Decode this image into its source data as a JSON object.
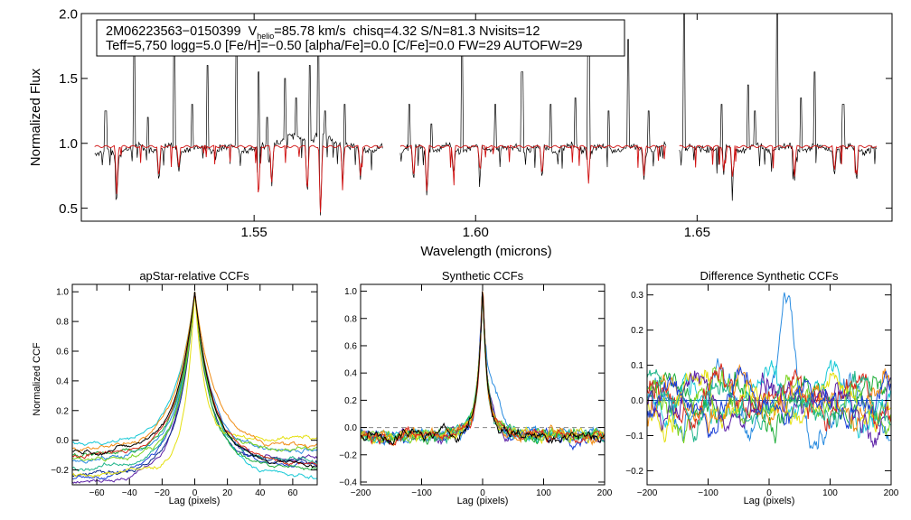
{
  "chart_data": [
    {
      "type": "line",
      "id": "spectrum",
      "xlabel": "Wavelength (microns)",
      "ylabel": "Normalized Flux",
      "xlim": [
        1.511,
        1.694
      ],
      "ylim": [
        0.4,
        2.0
      ],
      "xticks": [
        1.55,
        1.6,
        1.65
      ],
      "xtick_labels": [
        "1.55",
        "1.60",
        "1.65"
      ],
      "yticks": [
        0.5,
        1.0,
        1.5,
        2.0
      ],
      "ytick_labels": [
        "0.5",
        "1.0",
        "1.5",
        "2.0"
      ],
      "segments": [
        [
          1.514,
          1.579
        ],
        [
          1.583,
          1.643
        ],
        [
          1.646,
          1.6905
        ]
      ],
      "model_color": "#d01010",
      "observed_color": "#000000",
      "emission_spikes": [
        [
          1.5165,
          1.25
        ],
        [
          1.523,
          1.8
        ],
        [
          1.526,
          1.2
        ],
        [
          1.532,
          1.95
        ],
        [
          1.536,
          1.3
        ],
        [
          1.5395,
          1.6
        ],
        [
          1.546,
          1.85
        ],
        [
          1.551,
          1.55
        ],
        [
          1.553,
          1.2
        ],
        [
          1.557,
          1.5
        ],
        [
          1.5595,
          1.35
        ],
        [
          1.5625,
          1.6
        ],
        [
          1.5645,
          1.95
        ],
        [
          1.566,
          1.25
        ],
        [
          1.5705,
          1.3
        ],
        [
          1.585,
          1.3
        ],
        [
          1.59,
          1.15
        ],
        [
          1.597,
          1.8
        ],
        [
          1.6045,
          1.3
        ],
        [
          1.6105,
          1.55
        ],
        [
          1.617,
          1.3
        ],
        [
          1.6225,
          1.35
        ],
        [
          1.6255,
          1.8
        ],
        [
          1.63,
          1.25
        ],
        [
          1.6345,
          1.8
        ],
        [
          1.639,
          1.25
        ],
        [
          1.647,
          2.05
        ],
        [
          1.6555,
          1.3
        ],
        [
          1.6615,
          1.45
        ],
        [
          1.663,
          1.25
        ],
        [
          1.668,
          2.05
        ],
        [
          1.6735,
          1.35
        ],
        [
          1.6765,
          1.55
        ],
        [
          1.683,
          1.3
        ]
      ],
      "absorption_lines": [
        [
          1.519,
          0.61
        ],
        [
          1.5285,
          0.72
        ],
        [
          1.533,
          0.8
        ],
        [
          1.551,
          0.55
        ],
        [
          1.554,
          0.7
        ],
        [
          1.562,
          0.6
        ],
        [
          1.565,
          0.42
        ],
        [
          1.57,
          0.7
        ],
        [
          1.574,
          0.75
        ],
        [
          1.586,
          0.72
        ],
        [
          1.589,
          0.6
        ],
        [
          1.595,
          0.78
        ],
        [
          1.601,
          0.77
        ],
        [
          1.615,
          0.74
        ],
        [
          1.6255,
          0.69
        ],
        [
          1.638,
          0.75
        ],
        [
          1.656,
          0.78
        ],
        [
          1.658,
          0.71
        ],
        [
          1.672,
          0.74
        ],
        [
          1.681,
          0.77
        ],
        [
          1.686,
          0.72
        ]
      ]
    },
    {
      "type": "line",
      "id": "ccf-apstar",
      "title": "apStar-relative CCFs",
      "xlabel": "Lag (pixels)",
      "ylabel": "Normalized CCF",
      "xlim": [
        -75,
        75
      ],
      "ylim": [
        -0.3,
        1.05
      ],
      "xticks": [
        -60,
        -40,
        -20,
        0,
        20,
        40,
        60
      ],
      "xtick_labels": [
        "−60",
        "−40",
        "−20",
        "0",
        "20",
        "40",
        "60"
      ],
      "yticks": [
        -0.2,
        0.0,
        0.2,
        0.4,
        0.6,
        0.8,
        1.0
      ],
      "ytick_labels": [
        "−0.2",
        "0.0",
        "0.2",
        "0.4",
        "0.6",
        "0.8",
        "1.0"
      ],
      "peak_x": 0,
      "peak_y": 1.0,
      "series": [
        {
          "name": "purple",
          "color": "#5b1fa6",
          "edge_left": -0.22,
          "edge_right": -0.1,
          "width": 10
        },
        {
          "name": "blue",
          "color": "#1a3fd6",
          "edge_left": -0.2,
          "edge_right": -0.13,
          "width": 11
        },
        {
          "name": "navy",
          "color": "#0c2a8a",
          "edge_left": -0.18,
          "edge_right": -0.12,
          "width": 9
        },
        {
          "name": "sky",
          "color": "#2a8ce0",
          "edge_left": -0.1,
          "edge_right": -0.05,
          "width": 10
        },
        {
          "name": "cyan",
          "color": "#18c9d6",
          "edge_left": -0.02,
          "edge_right": -0.2,
          "width": 12
        },
        {
          "name": "teal",
          "color": "#20b58a",
          "edge_left": -0.15,
          "edge_right": -0.1,
          "width": 10
        },
        {
          "name": "green",
          "color": "#1fae3a",
          "edge_left": -0.08,
          "edge_right": -0.15,
          "width": 10
        },
        {
          "name": "lime",
          "color": "#7ad31d",
          "edge_left": -0.1,
          "edge_right": -0.05,
          "width": 9
        },
        {
          "name": "yellow",
          "color": "#e4e00e",
          "edge_left": -0.18,
          "edge_right": 0.01,
          "width": 6
        },
        {
          "name": "orange",
          "color": "#f08b12",
          "edge_left": -0.05,
          "edge_right": -0.03,
          "width": 12
        },
        {
          "name": "red",
          "color": "#d8281a",
          "edge_left": -0.08,
          "edge_right": -0.12,
          "width": 11
        },
        {
          "name": "black",
          "color": "#000000",
          "edge_left": -0.06,
          "edge_right": -0.13,
          "width": 11
        }
      ]
    },
    {
      "type": "line",
      "id": "ccf-synthetic",
      "title": "Synthetic CCFs",
      "xlabel": "Lag (pixels)",
      "ylabel": "",
      "xlim": [
        -200,
        200
      ],
      "ylim": [
        -0.42,
        1.05
      ],
      "xticks": [
        -200,
        -100,
        0,
        100,
        200
      ],
      "xtick_labels": [
        "−200",
        "−100",
        "0",
        "100",
        "200"
      ],
      "yticks": [
        -0.4,
        -0.2,
        0.0,
        0.2,
        0.4,
        0.6,
        0.8,
        1.0
      ],
      "ytick_labels": [
        "−0.4",
        "−0.2",
        "0.0",
        "0.2",
        "0.4",
        "0.6",
        "0.8",
        "1.0"
      ],
      "zero_line": 0.0,
      "series": [
        {
          "name": "purple",
          "color": "#5b1fa6"
        },
        {
          "name": "blue",
          "color": "#1a3fd6"
        },
        {
          "name": "sky",
          "color": "#2a8ce0"
        },
        {
          "name": "cyan",
          "color": "#18c9d6"
        },
        {
          "name": "teal",
          "color": "#20b58a"
        },
        {
          "name": "green",
          "color": "#1fae3a"
        },
        {
          "name": "lime",
          "color": "#7ad31d"
        },
        {
          "name": "yellow",
          "color": "#e4e00e"
        },
        {
          "name": "orange",
          "color": "#f08b12"
        },
        {
          "name": "red",
          "color": "#d8281a"
        },
        {
          "name": "black",
          "color": "#000000"
        }
      ]
    },
    {
      "type": "line",
      "id": "ccf-difference",
      "title": "Difference Synthetic CCFs",
      "xlabel": "Lag (pixels)",
      "ylabel": "",
      "xlim": [
        -200,
        200
      ],
      "ylim": [
        -0.24,
        0.33
      ],
      "xticks": [
        -200,
        -100,
        0,
        100,
        200
      ],
      "xtick_labels": [
        "−200",
        "−100",
        "0",
        "100",
        "200"
      ],
      "yticks": [
        -0.2,
        -0.1,
        0.0,
        0.1,
        0.2,
        0.3
      ],
      "ytick_labels": [
        "−0.2",
        "−0.1",
        "0.0",
        "0.1",
        "0.2",
        "0.3"
      ],
      "zero_line": 0.0,
      "series": [
        {
          "name": "sky",
          "color": "#2a8ce0",
          "peak_x": 30,
          "peak_y": 0.29
        },
        {
          "name": "cyan",
          "color": "#18c9d6"
        },
        {
          "name": "green",
          "color": "#1fae3a"
        },
        {
          "name": "lime",
          "color": "#7ad31d"
        },
        {
          "name": "yellow",
          "color": "#e4e00e"
        },
        {
          "name": "orange",
          "color": "#f08b12"
        },
        {
          "name": "red",
          "color": "#d8281a"
        },
        {
          "name": "purple",
          "color": "#5b1fa6"
        },
        {
          "name": "blue",
          "color": "#1a3fd6"
        },
        {
          "name": "teal",
          "color": "#20b58a"
        }
      ]
    }
  ],
  "info_box": {
    "id_text": "2M06223563−0150399",
    "v_label": "V",
    "v_sub": "helio",
    "v_value": "=85.78 km/s",
    "rest_line1": "chisq=4.32  S/N=81.3  Nvisits=12",
    "line2": "Teff=5,750 logg=5.0 [Fe/H]=−0.50 [alpha/Fe]=0.0 [C/Fe]=0.0 FW=29 AUTOFW=29"
  }
}
